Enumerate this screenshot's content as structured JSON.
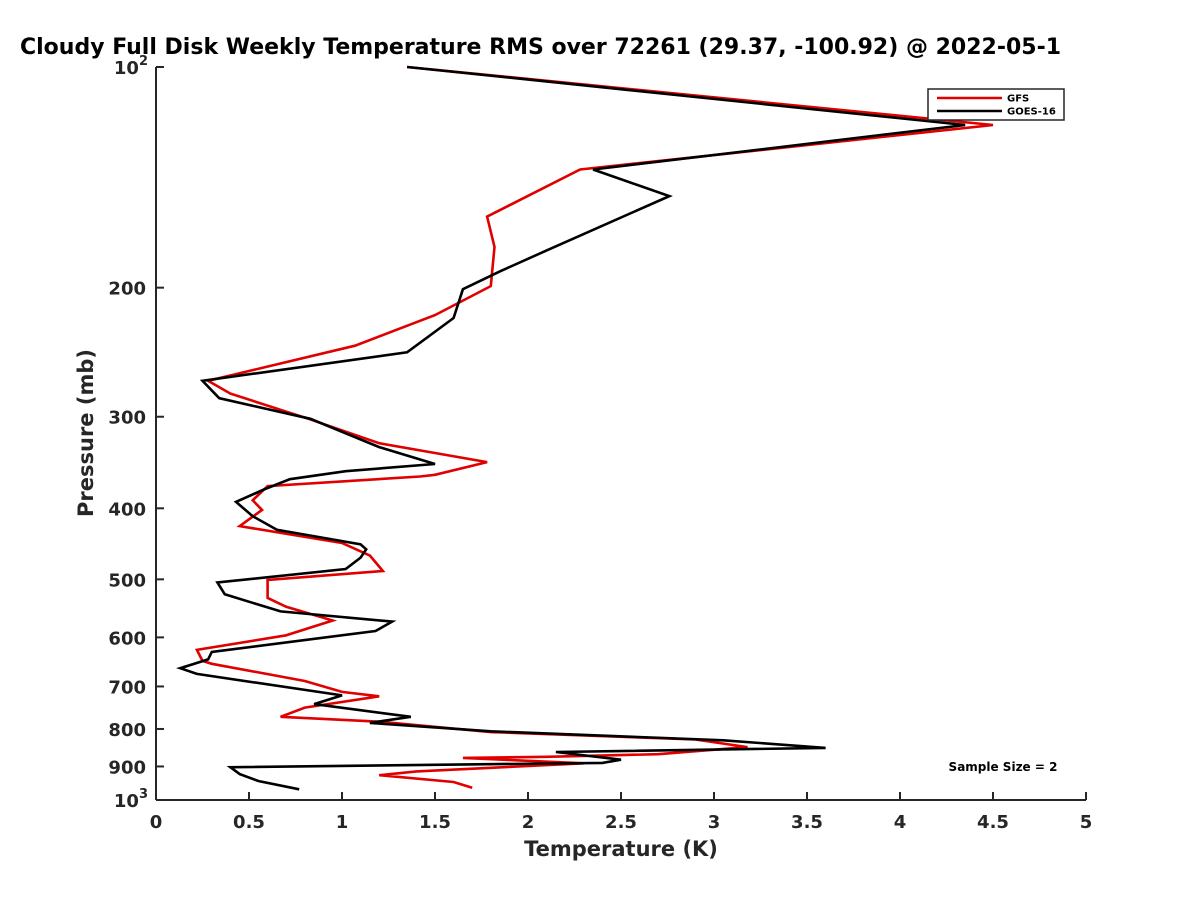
{
  "chart_data": {
    "type": "line",
    "title": "Cloudy Full Disk Weekly Temperature RMS over 72261 (29.37, -100.92) @ 2022-05-1",
    "xlabel": "Temperature (K)",
    "ylabel": "Pressure (mb)",
    "xlim": [
      0,
      5
    ],
    "ylim": [
      100,
      1000
    ],
    "y_scale": "log",
    "y_reversed": true,
    "grid": false,
    "legend_position": "top-right",
    "annotation": "Sample Size = 2",
    "x_ticks": [
      "0",
      "0.5",
      "1",
      "1.5",
      "2",
      "2.5",
      "3",
      "3.5",
      "4",
      "4.5",
      "5"
    ],
    "y_ticks": [
      {
        "value": 100,
        "label": "10",
        "sup": "2"
      },
      {
        "value": 200,
        "label": "200",
        "sup": ""
      },
      {
        "value": 300,
        "label": "300",
        "sup": ""
      },
      {
        "value": 400,
        "label": "400",
        "sup": ""
      },
      {
        "value": 500,
        "label": "500",
        "sup": ""
      },
      {
        "value": 600,
        "label": "600",
        "sup": ""
      },
      {
        "value": 700,
        "label": "700",
        "sup": ""
      },
      {
        "value": 800,
        "label": "800",
        "sup": ""
      },
      {
        "value": 900,
        "label": "900",
        "sup": ""
      },
      {
        "value": 1000,
        "label": "10",
        "sup": "3"
      }
    ],
    "series": [
      {
        "name": "GFS",
        "color": "#e00000",
        "points": [
          [
            1.35,
            100
          ],
          [
            4.5,
            120
          ],
          [
            2.28,
            138
          ],
          [
            1.78,
            160
          ],
          [
            1.82,
            176
          ],
          [
            1.8,
            199
          ],
          [
            1.5,
            218
          ],
          [
            1.07,
            240
          ],
          [
            0.28,
            268
          ],
          [
            0.4,
            279
          ],
          [
            0.82,
            302
          ],
          [
            1.2,
            326
          ],
          [
            1.78,
            346
          ],
          [
            1.5,
            360
          ],
          [
            1.42,
            362
          ],
          [
            0.6,
            373
          ],
          [
            0.52,
            390
          ],
          [
            0.57,
            402
          ],
          [
            0.45,
            423
          ],
          [
            1.0,
            446
          ],
          [
            1.15,
            464
          ],
          [
            1.22,
            487
          ],
          [
            0.6,
            501
          ],
          [
            0.6,
            530
          ],
          [
            0.7,
            545
          ],
          [
            0.95,
            569
          ],
          [
            0.7,
            596
          ],
          [
            0.22,
            624
          ],
          [
            0.25,
            646
          ],
          [
            0.3,
            652
          ],
          [
            0.8,
            688
          ],
          [
            1.0,
            712
          ],
          [
            1.2,
            722
          ],
          [
            0.8,
            748
          ],
          [
            0.67,
            770
          ],
          [
            1.2,
            782
          ],
          [
            1.8,
            808
          ],
          [
            2.9,
            827
          ],
          [
            3.18,
            847
          ],
          [
            2.7,
            866
          ],
          [
            2.1,
            873
          ],
          [
            1.65,
            876
          ],
          [
            2.3,
            891
          ],
          [
            1.4,
            914
          ],
          [
            1.2,
            925
          ],
          [
            1.6,
            945
          ],
          [
            1.7,
            962
          ]
        ]
      },
      {
        "name": "GOES-16",
        "color": "#000000",
        "points": [
          [
            1.35,
            100
          ],
          [
            4.35,
            120
          ],
          [
            2.35,
            138
          ],
          [
            2.76,
            150
          ],
          [
            2.12,
            177
          ],
          [
            1.85,
            190
          ],
          [
            1.65,
            201
          ],
          [
            1.6,
            220
          ],
          [
            1.35,
            245
          ],
          [
            0.25,
            268
          ],
          [
            0.34,
            283
          ],
          [
            0.83,
            302
          ],
          [
            1.2,
            330
          ],
          [
            1.5,
            348
          ],
          [
            1.02,
            356
          ],
          [
            0.72,
            365
          ],
          [
            0.58,
            377
          ],
          [
            0.43,
            392
          ],
          [
            0.52,
            410
          ],
          [
            0.65,
            428
          ],
          [
            1.1,
            448
          ],
          [
            1.13,
            455
          ],
          [
            1.1,
            467
          ],
          [
            1.02,
            484
          ],
          [
            0.33,
            505
          ],
          [
            0.37,
            524
          ],
          [
            0.67,
            553
          ],
          [
            1.27,
            571
          ],
          [
            1.18,
            588
          ],
          [
            0.3,
            628
          ],
          [
            0.28,
            643
          ],
          [
            0.13,
            661
          ],
          [
            0.22,
            673
          ],
          [
            1.0,
            720
          ],
          [
            0.85,
            740
          ],
          [
            1.37,
            770
          ],
          [
            1.15,
            785
          ],
          [
            1.8,
            806
          ],
          [
            3.05,
            829
          ],
          [
            3.6,
            849
          ],
          [
            2.15,
            860
          ],
          [
            2.5,
            881
          ],
          [
            2.4,
            890
          ],
          [
            0.4,
            902
          ],
          [
            0.45,
            922
          ],
          [
            0.55,
            942
          ],
          [
            0.77,
            967
          ]
        ]
      }
    ]
  }
}
